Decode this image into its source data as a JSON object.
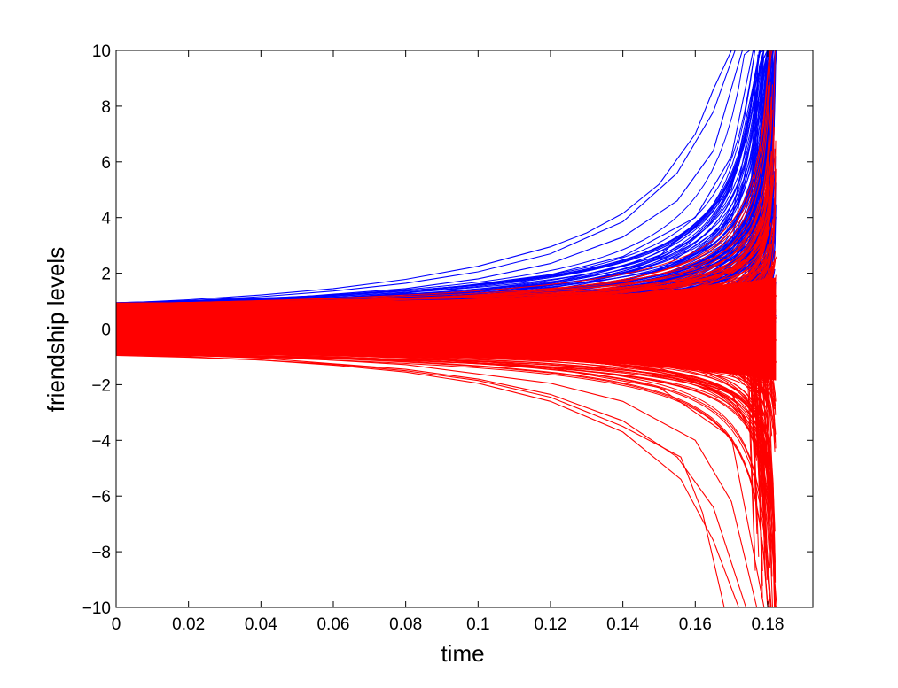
{
  "chart_data": {
    "type": "line",
    "title": "",
    "xlabel": "time",
    "ylabel": "friendship levels",
    "xlim": [
      0,
      0.1925
    ],
    "ylim": [
      -10,
      10
    ],
    "xticks": [
      0,
      0.02,
      0.04,
      0.06,
      0.08,
      0.1,
      0.12,
      0.14,
      0.16,
      0.18
    ],
    "xtick_labels": [
      "0",
      "0.02",
      "0.04",
      "0.06",
      "0.08",
      "0.1",
      "0.12",
      "0.14",
      "0.16",
      "0.18"
    ],
    "yticks": [
      -10,
      -8,
      -6,
      -4,
      -2,
      0,
      2,
      4,
      6,
      8,
      10
    ],
    "ytick_labels": [
      "−10",
      "−8",
      "−6",
      "−4",
      "−2",
      "0",
      "2",
      "4",
      "6",
      "8",
      "10"
    ],
    "grid": false,
    "legend": "none",
    "blowup_time": 0.1825,
    "series_colors": {
      "upper_group": "#0000ff",
      "lower_group": "#ff0000"
    },
    "series": [
      {
        "group": "upper_group",
        "x": [
          0,
          0.02,
          0.04,
          0.06,
          0.08,
          0.1,
          0.12,
          0.13,
          0.14,
          0.15,
          0.16,
          0.165,
          0.17
        ],
        "y": [
          0.92,
          1.05,
          1.22,
          1.45,
          1.78,
          2.25,
          2.95,
          3.45,
          4.15,
          5.2,
          7.0,
          8.6,
          10
        ]
      },
      {
        "group": "upper_group",
        "x": [
          0,
          0.02,
          0.04,
          0.06,
          0.08,
          0.1,
          0.12,
          0.14,
          0.155,
          0.165,
          0.171
        ],
        "y": [
          0.9,
          1.01,
          1.16,
          1.36,
          1.64,
          2.05,
          2.7,
          3.85,
          5.6,
          7.8,
          10
        ]
      },
      {
        "group": "upper_group",
        "x": [
          0,
          0.04,
          0.08,
          0.1,
          0.12,
          0.14,
          0.155,
          0.165,
          0.173
        ],
        "y": [
          0.85,
          1.05,
          1.45,
          1.8,
          2.35,
          3.3,
          4.6,
          6.4,
          10
        ]
      },
      {
        "group": "upper_group",
        "x": [
          0,
          0.04,
          0.08,
          0.12,
          0.14,
          0.16,
          0.17,
          0.176
        ],
        "y": [
          0.8,
          0.97,
          1.28,
          1.95,
          2.6,
          4.0,
          6.2,
          10
        ]
      },
      {
        "group": "upper_group",
        "x": [
          0,
          0.04,
          0.08,
          0.12,
          0.15,
          0.17,
          0.178
        ],
        "y": [
          0.75,
          0.9,
          1.15,
          1.65,
          2.6,
          5.0,
          10
        ]
      },
      {
        "group": "upper_group",
        "x": [
          0,
          0.04,
          0.08,
          0.12,
          0.15,
          0.17,
          0.179
        ],
        "y": [
          0.7,
          0.83,
          1.03,
          1.4,
          2.1,
          3.9,
          10
        ]
      },
      {
        "group": "upper_group",
        "x": [
          0,
          0.04,
          0.08,
          0.12,
          0.15,
          0.17,
          0.18
        ],
        "y": [
          0.65,
          0.76,
          0.93,
          1.2,
          1.7,
          3.0,
          10
        ]
      },
      {
        "group": "upper_group",
        "x": [
          0,
          0.04,
          0.08,
          0.12,
          0.15,
          0.17,
          0.178,
          0.181
        ],
        "y": [
          0.6,
          0.7,
          0.84,
          1.05,
          1.4,
          2.3,
          4.5,
          10
        ]
      },
      {
        "group": "upper_group",
        "x": [
          0,
          0.04,
          0.08,
          0.12,
          0.15,
          0.17,
          0.178,
          0.182
        ],
        "y": [
          0.55,
          0.63,
          0.75,
          0.92,
          1.2,
          1.8,
          3.2,
          10
        ]
      },
      {
        "group": "upper_group",
        "x": [
          0,
          0.04,
          0.08,
          0.12,
          0.15,
          0.17,
          0.178,
          0.1825
        ],
        "y": [
          0.5,
          0.57,
          0.66,
          0.8,
          1.02,
          1.45,
          2.3,
          10
        ]
      },
      {
        "group": "lower_group",
        "x": [
          0,
          0.04,
          0.08,
          0.12,
          0.15,
          0.17,
          0.178,
          0.1825
        ],
        "y": [
          0.4,
          0.45,
          0.52,
          0.62,
          0.8,
          1.1,
          1.5,
          2.6
        ]
      },
      {
        "group": "lower_group",
        "x": [
          0,
          0.04,
          0.08,
          0.12,
          0.15,
          0.17,
          0.178,
          0.1825
        ],
        "y": [
          0.3,
          0.34,
          0.38,
          0.45,
          0.55,
          0.7,
          0.9,
          1.2
        ]
      },
      {
        "group": "lower_group",
        "x": [
          0,
          0.04,
          0.08,
          0.12,
          0.15,
          0.17,
          0.178,
          0.1825
        ],
        "y": [
          0.1,
          0.11,
          0.12,
          0.14,
          0.16,
          0.2,
          0.25,
          0.4
        ]
      },
      {
        "group": "lower_group",
        "x": [
          0,
          0.04,
          0.08,
          0.12,
          0.15,
          0.17,
          0.178,
          0.1825
        ],
        "y": [
          -0.1,
          -0.11,
          -0.12,
          -0.14,
          -0.16,
          -0.2,
          -0.25,
          -0.4
        ]
      },
      {
        "group": "lower_group",
        "x": [
          0,
          0.04,
          0.08,
          0.12,
          0.15,
          0.17,
          0.178,
          0.1825
        ],
        "y": [
          -0.3,
          -0.34,
          -0.38,
          -0.45,
          -0.55,
          -0.7,
          -0.9,
          -1.2
        ]
      },
      {
        "group": "lower_group",
        "x": [
          0,
          0.04,
          0.08,
          0.12,
          0.15,
          0.17,
          0.178,
          0.1825
        ],
        "y": [
          -0.5,
          -0.57,
          -0.66,
          -0.8,
          -1.02,
          -1.45,
          -2.3,
          -10
        ]
      },
      {
        "group": "lower_group",
        "x": [
          0,
          0.04,
          0.08,
          0.12,
          0.15,
          0.17,
          0.178,
          0.181
        ],
        "y": [
          -0.6,
          -0.7,
          -0.84,
          -1.05,
          -1.4,
          -2.3,
          -4.5,
          -10
        ]
      },
      {
        "group": "lower_group",
        "x": [
          0,
          0.04,
          0.08,
          0.12,
          0.15,
          0.17,
          0.179
        ],
        "y": [
          -0.7,
          -0.83,
          -1.03,
          -1.4,
          -2.1,
          -3.9,
          -10
        ]
      },
      {
        "group": "lower_group",
        "x": [
          0,
          0.04,
          0.08,
          0.12,
          0.14,
          0.16,
          0.17,
          0.177
        ],
        "y": [
          -0.8,
          -0.97,
          -1.28,
          -1.95,
          -2.6,
          -4.0,
          -6.2,
          -10
        ]
      },
      {
        "group": "lower_group",
        "x": [
          0,
          0.04,
          0.08,
          0.1,
          0.12,
          0.14,
          0.155,
          0.165,
          0.174
        ],
        "y": [
          -0.85,
          -1.05,
          -1.45,
          -1.8,
          -2.35,
          -3.3,
          -4.6,
          -6.4,
          -10
        ]
      },
      {
        "group": "lower_group",
        "x": [
          0,
          0.02,
          0.04,
          0.06,
          0.08,
          0.1,
          0.12,
          0.14,
          0.156,
          0.165,
          0.172
        ],
        "y": [
          -0.92,
          -1.0,
          -1.12,
          -1.3,
          -1.55,
          -1.95,
          -2.6,
          -3.7,
          -5.4,
          -7.6,
          -10
        ]
      },
      {
        "group": "lower_group",
        "x": [
          0,
          0.02,
          0.04,
          0.06,
          0.08,
          0.1,
          0.12,
          0.14,
          0.156,
          0.162,
          0.168
        ],
        "y": [
          -0.95,
          -1.02,
          -1.12,
          -1.27,
          -1.5,
          -1.85,
          -2.45,
          -3.5,
          -4.6,
          -6.6,
          -10
        ]
      }
    ]
  }
}
